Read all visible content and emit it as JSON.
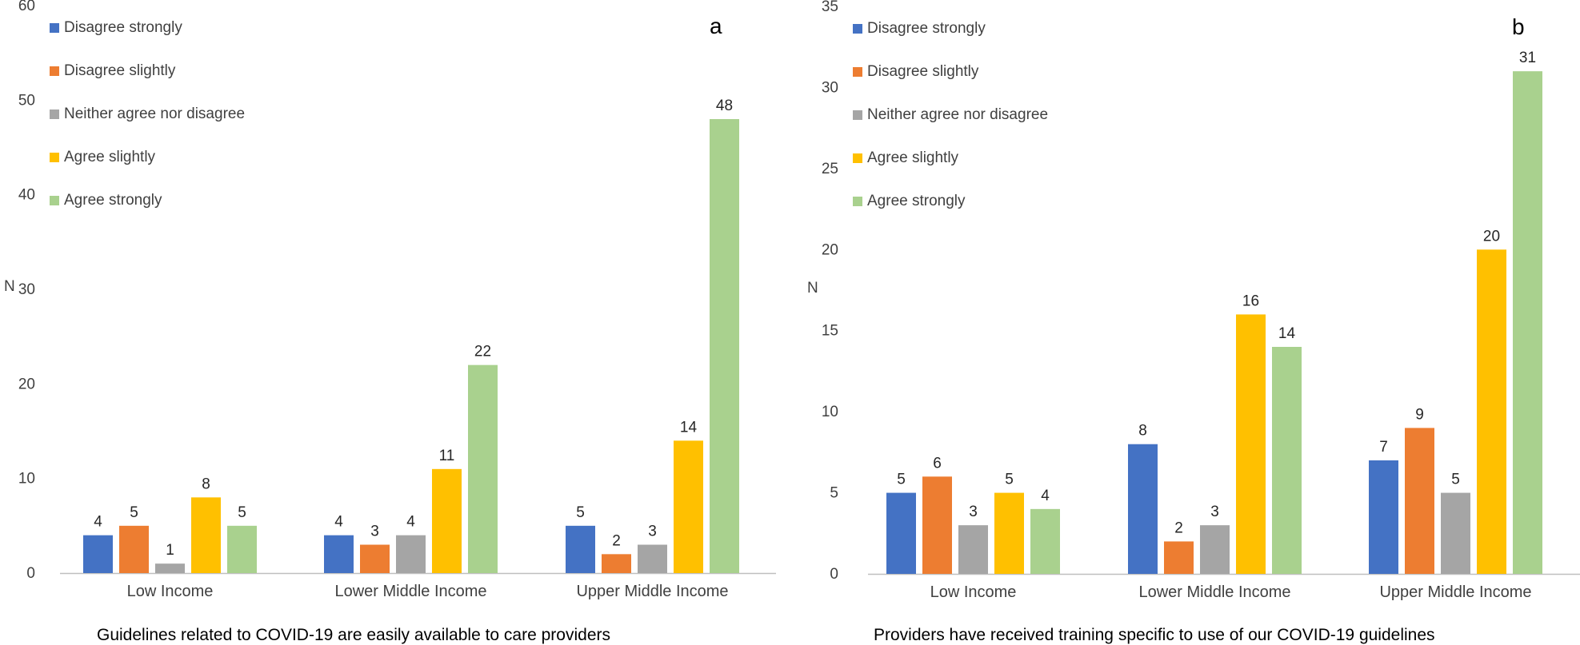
{
  "legend": [
    "Disagree strongly",
    "Disagree slightly",
    "Neither agree nor disagree",
    "Agree slightly",
    "Agree strongly"
  ],
  "colors": [
    "#4472C4",
    "#ED7D31",
    "#A5A5A5",
    "#FFC000",
    "#A9D18E"
  ],
  "chart_data": [
    {
      "type": "bar",
      "panel": "a",
      "title": "Guidelines related to COVID-19 are easily available to care providers",
      "ylabel": "N",
      "xlabel": "",
      "ylim": [
        0,
        60
      ],
      "yticks": [
        0,
        10,
        20,
        30,
        40,
        50,
        60
      ],
      "categories": [
        "Low Income",
        "Lower Middle Income",
        "Upper Middle Income"
      ],
      "legend_position": "top-left",
      "series": [
        {
          "name": "Disagree strongly",
          "values": [
            4,
            4,
            5
          ]
        },
        {
          "name": "Disagree slightly",
          "values": [
            5,
            3,
            2
          ]
        },
        {
          "name": "Neither agree nor disagree",
          "values": [
            1,
            4,
            3
          ]
        },
        {
          "name": "Agree slightly",
          "values": [
            8,
            11,
            14
          ]
        },
        {
          "name": "Agree strongly",
          "values": [
            5,
            22,
            48
          ]
        }
      ]
    },
    {
      "type": "bar",
      "panel": "b",
      "title": "Providers have received training specific to use of our COVID-19 guidelines",
      "ylabel": "N",
      "xlabel": "",
      "ylim": [
        0,
        35
      ],
      "yticks": [
        0,
        5,
        10,
        15,
        20,
        25,
        30,
        35
      ],
      "categories": [
        "Low Income",
        "Lower Middle Income",
        "Upper Middle Income"
      ],
      "legend_position": "top-left",
      "series": [
        {
          "name": "Disagree strongly",
          "values": [
            5,
            8,
            7
          ]
        },
        {
          "name": "Disagree slightly",
          "values": [
            6,
            2,
            9
          ]
        },
        {
          "name": "Neither agree nor disagree",
          "values": [
            3,
            3,
            5
          ]
        },
        {
          "name": "Agree slightly",
          "values": [
            5,
            16,
            20
          ]
        },
        {
          "name": "Agree strongly",
          "values": [
            4,
            14,
            31
          ]
        }
      ]
    }
  ]
}
